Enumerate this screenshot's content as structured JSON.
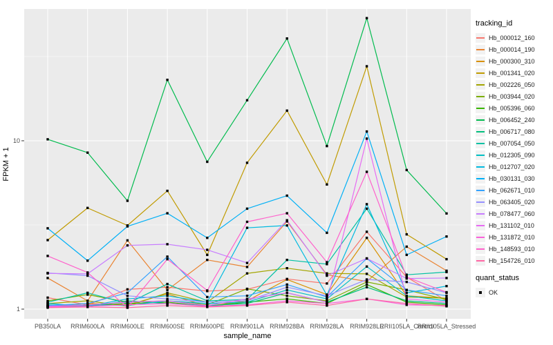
{
  "chart_data": {
    "type": "line",
    "title": "",
    "xlabel": "sample_name",
    "ylabel": "FPKM + 1",
    "y_scale": "log10",
    "legend_title": "tracking_id",
    "legend_position": "right",
    "grid": "on",
    "point_shape": "square",
    "quant_legend": {
      "title": "quant_status",
      "items": [
        {
          "label": "OK"
        }
      ]
    },
    "y_ticks": [
      {
        "label": "1",
        "value": 1
      },
      {
        "label": "10",
        "value": 10
      }
    ],
    "y_minor": [
      3.162,
      31.62
    ],
    "ylim": [
      0.95,
      70
    ],
    "categories": [
      "PB350LA",
      "RRIM600LA",
      "RRIM600LE",
      "RRIM600SE",
      "RRIM600PE",
      "RRIM901LA",
      "RRIM928BA",
      "RRIM928LA",
      "RRIM928LE",
      "RRII105LA_Control",
      "RRII105LA_Stressed"
    ],
    "series": [
      {
        "name": "Hb_000012_160",
        "color": "#F8766D",
        "values": [
          1.17,
          1.06,
          1.31,
          1.35,
          1.28,
          1.31,
          1.51,
          1.42,
          2.88,
          1.55,
          1.12
        ]
      },
      {
        "name": "Hb_000014_190",
        "color": "#EA8331",
        "values": [
          1.53,
          1.12,
          2.56,
          1.3,
          1.96,
          1.78,
          3.32,
          1.6,
          1.46,
          2.35,
          1.69
        ]
      },
      {
        "name": "Hb_000300_310",
        "color": "#D89000",
        "values": [
          1.04,
          1.08,
          1.06,
          1.23,
          1.04,
          1.12,
          1.5,
          1.22,
          2.65,
          1.2,
          1.16
        ]
      },
      {
        "name": "Hb_001341_020",
        "color": "#C09B00",
        "values": [
          2.57,
          3.99,
          3.14,
          5.04,
          2.1,
          7.4,
          15.1,
          5.5,
          27.7,
          2.78,
          1.98
        ]
      },
      {
        "name": "Hb_002226_050",
        "color": "#A3A500",
        "values": [
          1.08,
          1.12,
          1.04,
          1.25,
          1.1,
          1.63,
          1.75,
          1.63,
          1.62,
          1.18,
          1.16
        ]
      },
      {
        "name": "Hb_003944_020",
        "color": "#7CAE00",
        "values": [
          1.12,
          1.22,
          1.1,
          1.12,
          1.06,
          1.32,
          1.2,
          1.12,
          1.45,
          1.3,
          1.14
        ]
      },
      {
        "name": "Hb_005396_060",
        "color": "#39B600",
        "values": [
          1.03,
          1.05,
          1.08,
          1.1,
          1.04,
          1.1,
          1.15,
          1.08,
          1.4,
          1.1,
          1.06
        ]
      },
      {
        "name": "Hb_006452_240",
        "color": "#00BB4E",
        "values": [
          10.2,
          8.5,
          4.4,
          23.0,
          7.5,
          17.4,
          40.5,
          9.3,
          53.5,
          6.7,
          3.7
        ]
      },
      {
        "name": "Hb_006717_080",
        "color": "#00BF7D",
        "values": [
          1.06,
          1.03,
          1.12,
          1.08,
          1.05,
          1.08,
          1.25,
          1.1,
          1.35,
          1.12,
          1.08
        ]
      },
      {
        "name": "Hb_007054_050",
        "color": "#00C1A3",
        "values": [
          1.1,
          1.25,
          1.08,
          1.41,
          1.12,
          1.14,
          1.96,
          1.85,
          3.95,
          1.6,
          1.66
        ]
      },
      {
        "name": "Hb_012305_090",
        "color": "#00BFC4",
        "values": [
          1.04,
          1.06,
          1.05,
          1.12,
          1.08,
          1.1,
          1.3,
          1.15,
          1.79,
          1.2,
          1.12
        ]
      },
      {
        "name": "Hb_012707_020",
        "color": "#00BAE0",
        "values": [
          1.08,
          1.04,
          1.15,
          1.2,
          1.1,
          3.04,
          3.14,
          1.21,
          4.2,
          1.25,
          1.37
        ]
      },
      {
        "name": "Hb_030131_030",
        "color": "#00B0F6",
        "values": [
          3.02,
          1.94,
          3.1,
          3.71,
          2.65,
          3.95,
          4.72,
          2.84,
          11.35,
          2.1,
          2.7
        ]
      },
      {
        "name": "Hb_062671_010",
        "color": "#35A2FF",
        "values": [
          1.05,
          1.08,
          1.25,
          2.05,
          1.18,
          1.2,
          1.4,
          1.18,
          2.0,
          1.3,
          1.2
        ]
      },
      {
        "name": "Hb_063405_020",
        "color": "#9590FF",
        "values": [
          1.64,
          1.58,
          1.2,
          1.15,
          1.1,
          1.12,
          1.35,
          1.2,
          1.5,
          1.45,
          1.25
        ]
      },
      {
        "name": "Hb_078477_060",
        "color": "#C77CFF",
        "values": [
          1.63,
          1.62,
          2.39,
          2.43,
          2.25,
          1.88,
          3.37,
          1.58,
          2.0,
          1.52,
          1.53
        ]
      },
      {
        "name": "Hb_131102_010",
        "color": "#E76BF3",
        "values": [
          1.04,
          1.06,
          1.1,
          1.12,
          1.05,
          1.15,
          1.25,
          1.1,
          10.3,
          1.15,
          1.1
        ]
      },
      {
        "name": "Hb_131872_010",
        "color": "#FA62DB",
        "values": [
          1.03,
          1.04,
          1.06,
          1.08,
          1.04,
          1.06,
          1.12,
          1.08,
          1.15,
          1.06,
          1.05
        ]
      },
      {
        "name": "Hb_148593_010",
        "color": "#FF61CC",
        "values": [
          2.07,
          1.65,
          1.02,
          1.98,
          1.29,
          3.3,
          3.71,
          1.9,
          6.54,
          1.55,
          1.26
        ]
      },
      {
        "name": "Hb_154726_010",
        "color": "#FF67A4",
        "values": [
          1.02,
          1.03,
          1.02,
          1.05,
          1.03,
          1.05,
          1.1,
          1.05,
          1.15,
          1.08,
          1.04
        ]
      }
    ],
    "colors": {
      "panel_bg": "#EBEBEB",
      "gridline": "#FFFFFF",
      "point": "#000000",
      "axis_text": "#4D4D4D",
      "tick_mark": "#333333",
      "key_bg": "#F2F2F2"
    }
  }
}
